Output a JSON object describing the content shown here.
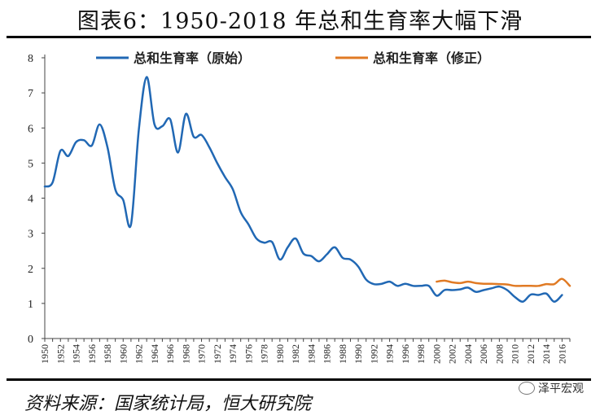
{
  "page": {
    "title": "图表6：1950-2018 年总和生育率大幅下滑",
    "source": "资料来源：国家统计局，恒大研究院",
    "watermark": "泽平宏观"
  },
  "colors": {
    "original": "#2168B4",
    "revised": "#E07A24",
    "axis": "#444444"
  },
  "chart_data": {
    "type": "line",
    "title": "1950-2018 年总和生育率大幅下滑",
    "xlabel": "",
    "ylabel": "",
    "ylim": [
      0,
      8
    ],
    "yticks": [
      0,
      1,
      2,
      3,
      4,
      5,
      6,
      7,
      8
    ],
    "xlim": [
      1950,
      2017
    ],
    "xticks": [
      "1950",
      "1952",
      "1954",
      "1956",
      "1958",
      "1960",
      "1962",
      "1964",
      "1966",
      "1968",
      "1970",
      "1972",
      "1974",
      "1976",
      "1978",
      "1980",
      "1982",
      "1984",
      "1986",
      "1988",
      "1990",
      "1992",
      "1994",
      "1996",
      "1998",
      "2000",
      "2002",
      "2004",
      "2006",
      "2008",
      "2010",
      "2012",
      "2014",
      "2016"
    ],
    "legend": "top",
    "series": [
      {
        "name": "总和生育率（原始）",
        "color": "#2168B4",
        "x": [
          1950,
          1951,
          1952,
          1953,
          1954,
          1955,
          1956,
          1957,
          1958,
          1959,
          1960,
          1961,
          1962,
          1963,
          1964,
          1965,
          1966,
          1967,
          1968,
          1969,
          1970,
          1971,
          1972,
          1973,
          1974,
          1975,
          1976,
          1977,
          1978,
          1979,
          1980,
          1981,
          1982,
          1983,
          1984,
          1985,
          1986,
          1987,
          1988,
          1989,
          1990,
          1991,
          1992,
          1993,
          1994,
          1995,
          1996,
          1997,
          1998,
          1999,
          2000,
          2001,
          2002,
          2003,
          2004,
          2005,
          2006,
          2007,
          2008,
          2009,
          2010,
          2011,
          2012,
          2013,
          2014,
          2015,
          2016
        ],
        "values": [
          4.33,
          4.45,
          5.35,
          5.2,
          5.6,
          5.65,
          5.5,
          6.1,
          5.45,
          4.25,
          3.95,
          3.25,
          5.95,
          7.45,
          6.1,
          6.05,
          6.25,
          5.3,
          6.4,
          5.75,
          5.8,
          5.45,
          5.0,
          4.6,
          4.25,
          3.6,
          3.25,
          2.85,
          2.73,
          2.75,
          2.25,
          2.6,
          2.85,
          2.42,
          2.35,
          2.2,
          2.4,
          2.6,
          2.3,
          2.25,
          2.05,
          1.68,
          1.55,
          1.56,
          1.62,
          1.5,
          1.56,
          1.5,
          1.5,
          1.5,
          1.22,
          1.38,
          1.38,
          1.4,
          1.45,
          1.33,
          1.38,
          1.43,
          1.48,
          1.38,
          1.18,
          1.05,
          1.25,
          1.24,
          1.28,
          1.05,
          1.24
        ]
      },
      {
        "name": "总和生育率（修正）",
        "color": "#E07A24",
        "x": [
          2000,
          2001,
          2002,
          2003,
          2004,
          2005,
          2006,
          2007,
          2008,
          2009,
          2010,
          2011,
          2012,
          2013,
          2014,
          2015,
          2016,
          2017
        ],
        "values": [
          1.62,
          1.65,
          1.6,
          1.58,
          1.62,
          1.58,
          1.56,
          1.56,
          1.55,
          1.54,
          1.5,
          1.5,
          1.5,
          1.5,
          1.55,
          1.55,
          1.7,
          1.5
        ]
      }
    ]
  }
}
